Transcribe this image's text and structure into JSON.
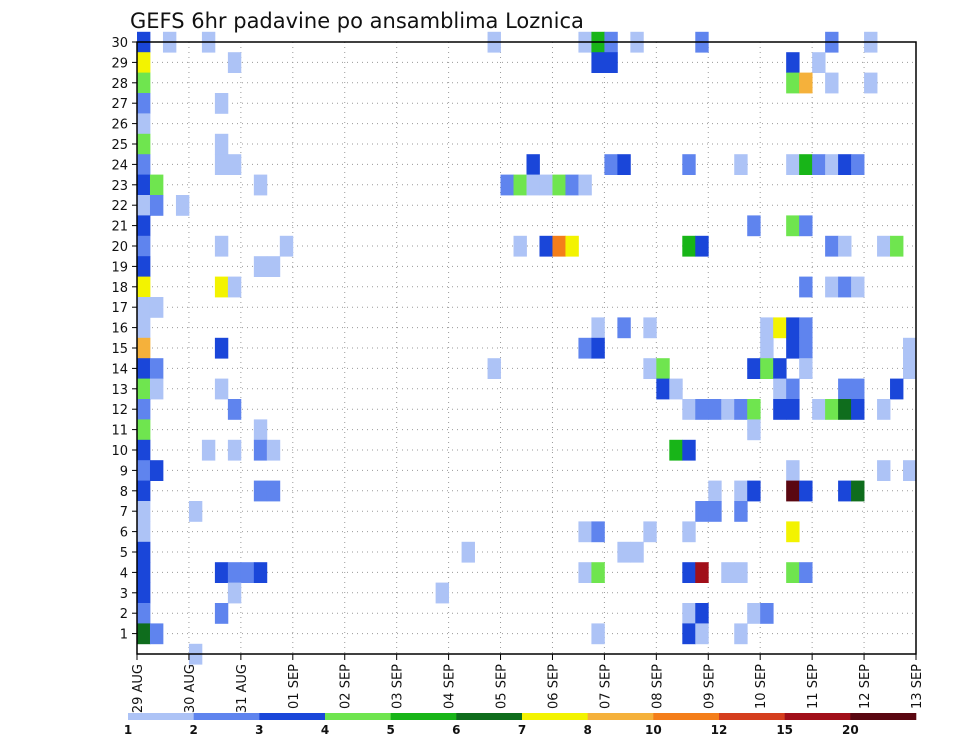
{
  "chart_data": {
    "type": "heatmap",
    "title": "GEFS 6hr padavine po ansamblima Loznica",
    "x_tick_labels": [
      "29 AUG",
      "30 AUG",
      "31 AUG",
      "01 SEP",
      "02 SEP",
      "03 SEP",
      "04 SEP",
      "05 SEP",
      "06 SEP",
      "07 SEP",
      "08 SEP",
      "09 SEP",
      "10 SEP",
      "11 SEP",
      "12 SEP",
      "13 SEP"
    ],
    "y_tick_labels": [
      "1",
      "2",
      "3",
      "4",
      "5",
      "6",
      "7",
      "8",
      "9",
      "10",
      "11",
      "12",
      "13",
      "14",
      "15",
      "16",
      "17",
      "18",
      "19",
      "20",
      "21",
      "22",
      "23",
      "24",
      "25",
      "26",
      "27",
      "28",
      "29",
      "30"
    ],
    "x_steps_per_day": 4,
    "x_range_steps": [
      0,
      60
    ],
    "y_range": [
      0,
      30
    ],
    "grid": true,
    "legend": {
      "placement": "bottom",
      "levels": [
        "1",
        "2",
        "3",
        "4",
        "5",
        "6",
        "7",
        "8",
        "10",
        "12",
        "15",
        "20"
      ],
      "colors": [
        "#adc3f6",
        "#5f84ee",
        "#1a46d9",
        "#6fe54f",
        "#18b518",
        "#0f6d1d",
        "#f3f300",
        "#f5b13b",
        "#f47e1a",
        "#d53e1e",
        "#a10f1a",
        "#5a0711"
      ]
    },
    "value_note": "cell value = color class index (1..12) matching legend colors",
    "cells": [
      [
        0,
        30,
        3
      ],
      [
        2,
        30,
        1
      ],
      [
        5,
        30,
        1
      ],
      [
        27,
        30,
        1
      ],
      [
        34,
        30,
        1
      ],
      [
        35,
        30,
        5
      ],
      [
        36,
        30,
        2
      ],
      [
        38,
        30,
        1
      ],
      [
        43,
        30,
        2
      ],
      [
        53,
        30,
        2
      ],
      [
        56,
        30,
        1
      ],
      [
        0,
        29,
        7
      ],
      [
        7,
        29,
        1
      ],
      [
        35,
        29,
        3
      ],
      [
        36,
        29,
        3
      ],
      [
        50,
        29,
        3
      ],
      [
        52,
        29,
        1
      ],
      [
        0,
        28,
        4
      ],
      [
        50,
        28,
        4
      ],
      [
        51,
        28,
        8
      ],
      [
        53,
        28,
        1
      ],
      [
        56,
        28,
        1
      ],
      [
        0,
        27,
        2
      ],
      [
        6,
        27,
        1
      ],
      [
        0,
        26,
        1
      ],
      [
        0,
        25,
        4
      ],
      [
        6,
        25,
        1
      ],
      [
        0,
        24,
        2
      ],
      [
        6,
        24,
        1
      ],
      [
        7,
        24,
        1
      ],
      [
        30,
        24,
        3
      ],
      [
        36,
        24,
        2
      ],
      [
        37,
        24,
        3
      ],
      [
        42,
        24,
        2
      ],
      [
        46,
        24,
        1
      ],
      [
        50,
        24,
        1
      ],
      [
        51,
        24,
        5
      ],
      [
        52,
        24,
        2
      ],
      [
        53,
        24,
        1
      ],
      [
        54,
        24,
        3
      ],
      [
        55,
        24,
        2
      ],
      [
        0,
        23,
        3
      ],
      [
        1,
        23,
        4
      ],
      [
        9,
        23,
        1
      ],
      [
        28,
        23,
        2
      ],
      [
        29,
        23,
        4
      ],
      [
        30,
        23,
        1
      ],
      [
        31,
        23,
        1
      ],
      [
        32,
        23,
        4
      ],
      [
        33,
        23,
        2
      ],
      [
        34,
        23,
        1
      ],
      [
        0,
        22,
        1
      ],
      [
        1,
        22,
        2
      ],
      [
        3,
        22,
        1
      ],
      [
        0,
        21,
        3
      ],
      [
        47,
        21,
        2
      ],
      [
        50,
        21,
        4
      ],
      [
        51,
        21,
        2
      ],
      [
        0,
        20,
        2
      ],
      [
        6,
        20,
        1
      ],
      [
        11,
        20,
        1
      ],
      [
        29,
        20,
        1
      ],
      [
        31,
        20,
        3
      ],
      [
        32,
        20,
        9
      ],
      [
        33,
        20,
        7
      ],
      [
        42,
        20,
        5
      ],
      [
        43,
        20,
        3
      ],
      [
        53,
        20,
        2
      ],
      [
        54,
        20,
        1
      ],
      [
        57,
        20,
        1
      ],
      [
        58,
        20,
        4
      ],
      [
        0,
        19,
        3
      ],
      [
        9,
        19,
        1
      ],
      [
        10,
        19,
        1
      ],
      [
        0,
        18,
        7
      ],
      [
        6,
        18,
        7
      ],
      [
        7,
        18,
        1
      ],
      [
        51,
        18,
        2
      ],
      [
        53,
        18,
        1
      ],
      [
        54,
        18,
        2
      ],
      [
        55,
        18,
        1
      ],
      [
        0,
        17,
        1
      ],
      [
        1,
        17,
        1
      ],
      [
        0,
        16,
        1
      ],
      [
        35,
        16,
        1
      ],
      [
        37,
        16,
        2
      ],
      [
        39,
        16,
        1
      ],
      [
        48,
        16,
        1
      ],
      [
        49,
        16,
        7
      ],
      [
        50,
        16,
        3
      ],
      [
        51,
        16,
        2
      ],
      [
        0,
        15,
        8
      ],
      [
        6,
        15,
        3
      ],
      [
        34,
        15,
        2
      ],
      [
        35,
        15,
        3
      ],
      [
        48,
        15,
        1
      ],
      [
        50,
        15,
        3
      ],
      [
        51,
        15,
        2
      ],
      [
        59,
        15,
        1
      ],
      [
        0,
        14,
        3
      ],
      [
        1,
        14,
        2
      ],
      [
        27,
        14,
        1
      ],
      [
        39,
        14,
        1
      ],
      [
        40,
        14,
        4
      ],
      [
        47,
        14,
        3
      ],
      [
        48,
        14,
        4
      ],
      [
        49,
        14,
        3
      ],
      [
        51,
        14,
        1
      ],
      [
        59,
        14,
        1
      ],
      [
        0,
        13,
        4
      ],
      [
        1,
        13,
        1
      ],
      [
        6,
        13,
        1
      ],
      [
        40,
        13,
        3
      ],
      [
        41,
        13,
        1
      ],
      [
        49,
        13,
        1
      ],
      [
        50,
        13,
        2
      ],
      [
        54,
        13,
        2
      ],
      [
        55,
        13,
        2
      ],
      [
        58,
        13,
        3
      ],
      [
        0,
        12,
        2
      ],
      [
        7,
        12,
        2
      ],
      [
        42,
        12,
        1
      ],
      [
        43,
        12,
        2
      ],
      [
        44,
        12,
        2
      ],
      [
        45,
        12,
        1
      ],
      [
        46,
        12,
        2
      ],
      [
        47,
        12,
        4
      ],
      [
        49,
        12,
        3
      ],
      [
        50,
        12,
        3
      ],
      [
        52,
        12,
        1
      ],
      [
        53,
        12,
        4
      ],
      [
        54,
        12,
        6
      ],
      [
        55,
        12,
        3
      ],
      [
        57,
        12,
        1
      ],
      [
        0,
        11,
        4
      ],
      [
        9,
        11,
        1
      ],
      [
        47,
        11,
        1
      ],
      [
        0,
        10,
        3
      ],
      [
        5,
        10,
        1
      ],
      [
        7,
        10,
        1
      ],
      [
        9,
        10,
        2
      ],
      [
        10,
        10,
        1
      ],
      [
        41,
        10,
        5
      ],
      [
        42,
        10,
        3
      ],
      [
        0,
        9,
        2
      ],
      [
        1,
        9,
        3
      ],
      [
        50,
        9,
        1
      ],
      [
        57,
        9,
        1
      ],
      [
        59,
        9,
        1
      ],
      [
        0,
        8,
        3
      ],
      [
        9,
        8,
        2
      ],
      [
        10,
        8,
        2
      ],
      [
        44,
        8,
        1
      ],
      [
        46,
        8,
        1
      ],
      [
        47,
        8,
        3
      ],
      [
        50,
        8,
        12
      ],
      [
        51,
        8,
        3
      ],
      [
        54,
        8,
        3
      ],
      [
        55,
        8,
        6
      ],
      [
        0,
        7,
        1
      ],
      [
        4,
        7,
        1
      ],
      [
        43,
        7,
        2
      ],
      [
        44,
        7,
        2
      ],
      [
        46,
        7,
        2
      ],
      [
        0,
        6,
        1
      ],
      [
        34,
        6,
        1
      ],
      [
        35,
        6,
        2
      ],
      [
        39,
        6,
        1
      ],
      [
        42,
        6,
        1
      ],
      [
        50,
        6,
        7
      ],
      [
        0,
        5,
        3
      ],
      [
        25,
        5,
        1
      ],
      [
        37,
        5,
        1
      ],
      [
        38,
        5,
        1
      ],
      [
        0,
        4,
        3
      ],
      [
        6,
        4,
        3
      ],
      [
        7,
        4,
        2
      ],
      [
        8,
        4,
        2
      ],
      [
        9,
        4,
        3
      ],
      [
        34,
        4,
        1
      ],
      [
        35,
        4,
        4
      ],
      [
        42,
        4,
        3
      ],
      [
        43,
        4,
        11
      ],
      [
        45,
        4,
        1
      ],
      [
        46,
        4,
        1
      ],
      [
        50,
        4,
        4
      ],
      [
        51,
        4,
        2
      ],
      [
        0,
        3,
        3
      ],
      [
        7,
        3,
        1
      ],
      [
        23,
        3,
        1
      ],
      [
        0,
        2,
        2
      ],
      [
        6,
        2,
        2
      ],
      [
        42,
        2,
        1
      ],
      [
        43,
        2,
        3
      ],
      [
        47,
        2,
        1
      ],
      [
        48,
        2,
        2
      ],
      [
        0,
        1,
        6
      ],
      [
        1,
        1,
        2
      ],
      [
        35,
        1,
        1
      ],
      [
        42,
        1,
        3
      ],
      [
        43,
        1,
        1
      ],
      [
        46,
        1,
        1
      ],
      [
        4,
        0,
        1
      ]
    ]
  }
}
